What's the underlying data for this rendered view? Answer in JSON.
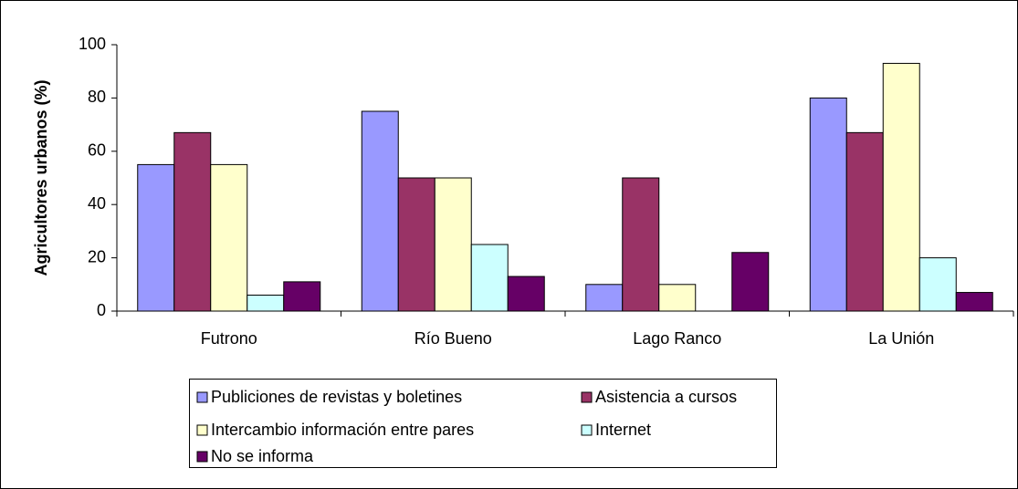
{
  "chart_data": {
    "type": "bar",
    "ylabel": "Agricultores urbanos (%)",
    "categories": [
      "Futrono",
      "Río Bueno",
      "Lago Ranco",
      "La Unión"
    ],
    "series": [
      {
        "name": "Publiciones de revistas y boletines",
        "color": "#9999ff",
        "values": [
          55,
          75,
          10,
          80
        ]
      },
      {
        "name": "Asistencia a cursos",
        "color": "#993366",
        "values": [
          67,
          50,
          50,
          67
        ]
      },
      {
        "name": "Intercambio información entre pares",
        "color": "#ffffcc",
        "values": [
          55,
          50,
          10,
          93
        ]
      },
      {
        "name": "Internet",
        "color": "#ccffff",
        "values": [
          6,
          25,
          0,
          20
        ]
      },
      {
        "name": "No se informa",
        "color": "#660066",
        "values": [
          11,
          13,
          22,
          7
        ]
      }
    ],
    "ylim": [
      0,
      100
    ],
    "yticks": [
      0,
      20,
      40,
      60,
      80,
      100
    ],
    "grid": false
  }
}
